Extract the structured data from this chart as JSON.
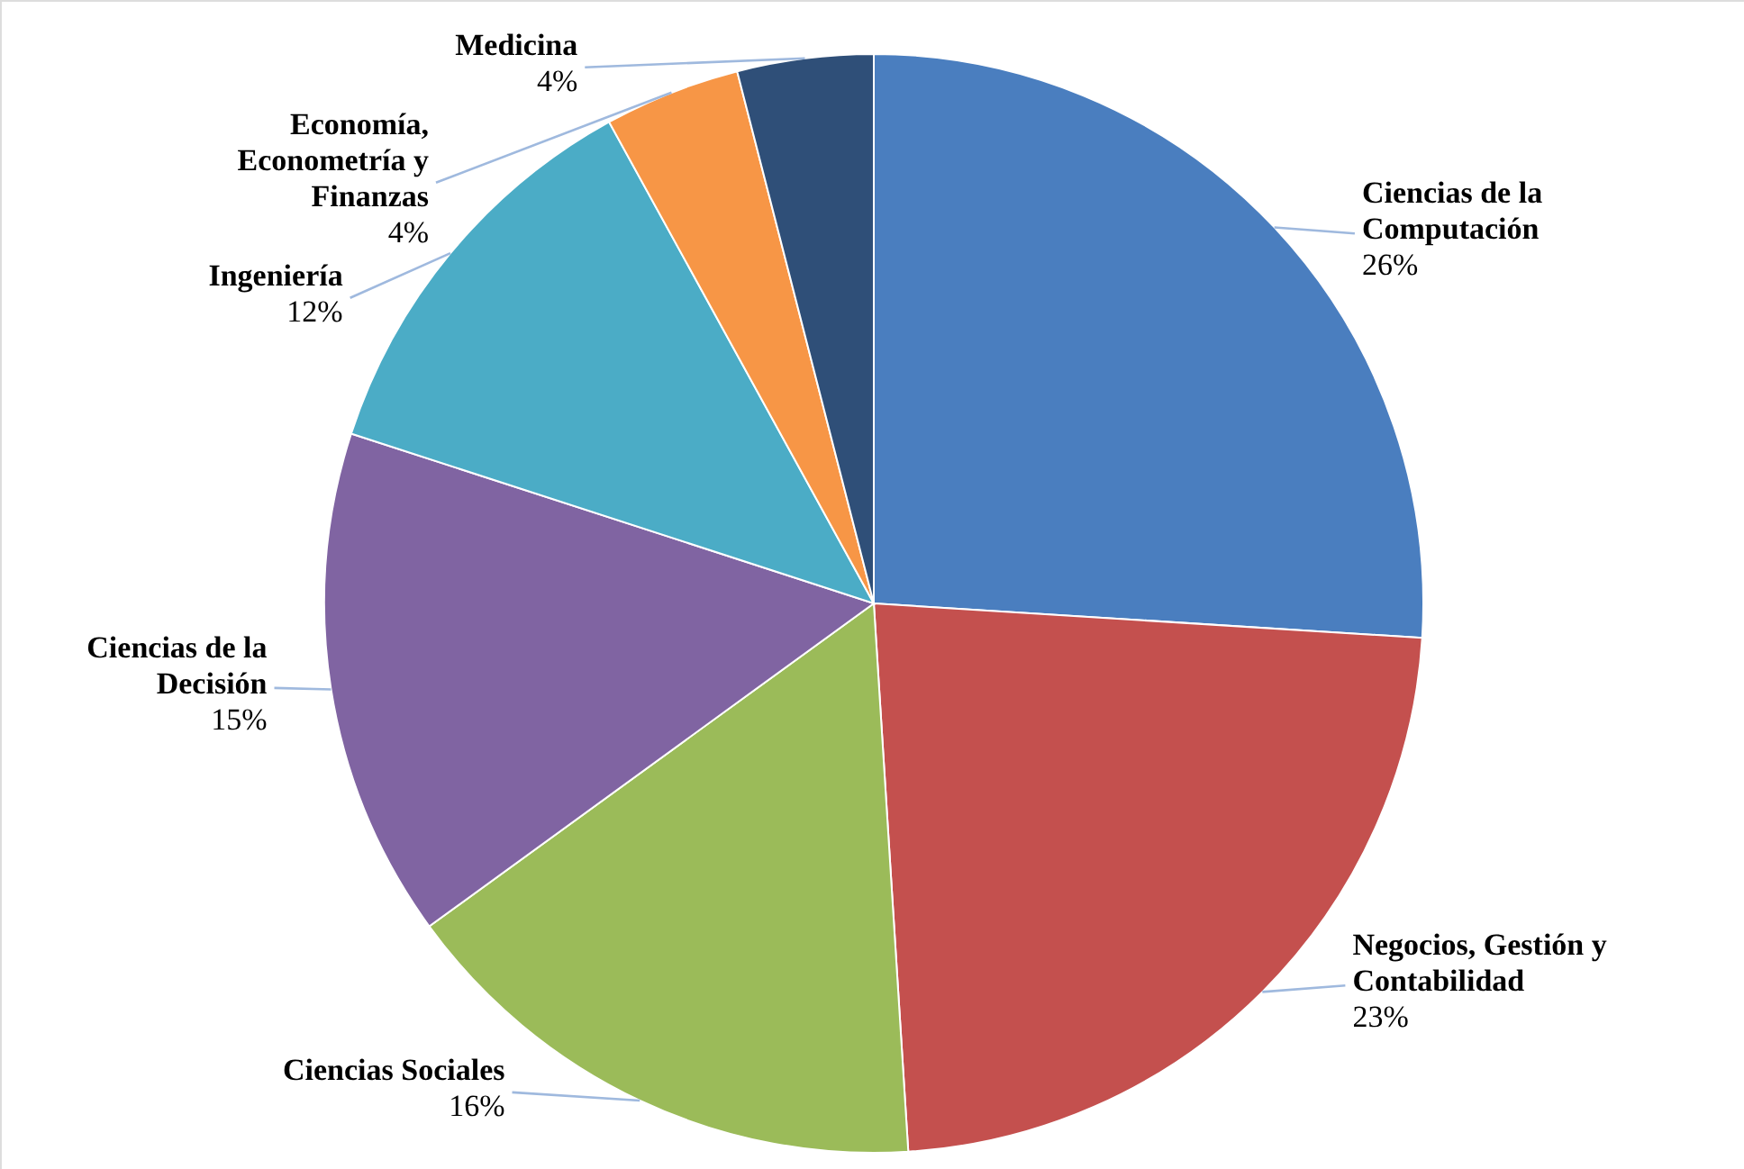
{
  "chart_data": {
    "type": "pie",
    "categories": [
      "Ciencias de la Computación",
      "Negocios, Gestión y Contabilidad",
      "Ciencias Sociales",
      "Ciencias de la Decisión",
      "Ingeniería",
      "Economía, Econometría y Finanzas",
      "Medicina"
    ],
    "values": [
      26,
      23,
      16,
      15,
      12,
      4,
      4
    ],
    "value_labels": [
      "26%",
      "23%",
      "16%",
      "15%",
      "12%",
      "4%",
      "4%"
    ],
    "colors": [
      "#4a7ebf",
      "#c4504e",
      "#9bbb59",
      "#8064a2",
      "#4bacc6",
      "#f79646",
      "#2f4f78"
    ]
  }
}
